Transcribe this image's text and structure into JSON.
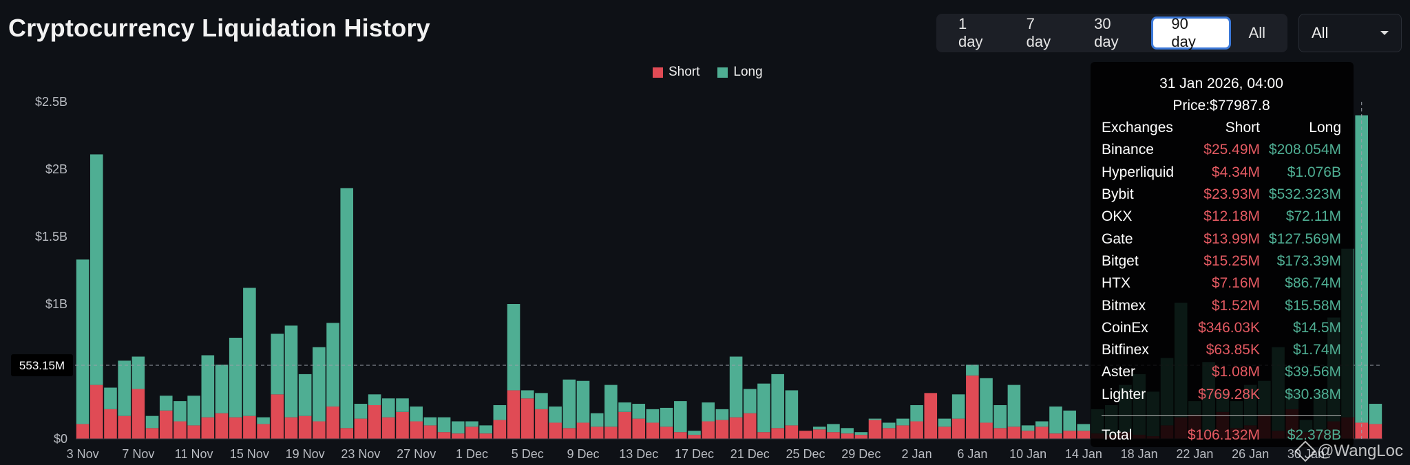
{
  "title": "Cryptocurrency Liquidation History",
  "ranges": [
    "1 day",
    "7 day",
    "30 day",
    "90 day",
    "All"
  ],
  "active_range": "90 day",
  "select_value": "All",
  "colors": {
    "short": "#e04b55",
    "long": "#4fae93",
    "bg": "#0e1116"
  },
  "crosshair_value": "553.15M",
  "tooltip": {
    "time": "31 Jan 2026, 04:00",
    "price": "Price:$77987.8",
    "headers": [
      "Exchanges",
      "Short",
      "Long"
    ],
    "rows": [
      [
        "Binance",
        "$25.49M",
        "$208.054M"
      ],
      [
        "Hyperliquid",
        "$4.34M",
        "$1.076B"
      ],
      [
        "Bybit",
        "$23.93M",
        "$532.323M"
      ],
      [
        "OKX",
        "$12.18M",
        "$72.11M"
      ],
      [
        "Gate",
        "$13.99M",
        "$127.569M"
      ],
      [
        "Bitget",
        "$15.25M",
        "$173.39M"
      ],
      [
        "HTX",
        "$7.16M",
        "$86.74M"
      ],
      [
        "Bitmex",
        "$1.52M",
        "$15.58M"
      ],
      [
        "CoinEx",
        "$346.03K",
        "$14.5M"
      ],
      [
        "Bitfinex",
        "$63.85K",
        "$1.74M"
      ],
      [
        "Aster",
        "$1.08M",
        "$39.56M"
      ],
      [
        "Lighter",
        "$769.28K",
        "$30.38M"
      ]
    ],
    "total": [
      "Total",
      "$106.132M",
      "$2.378B"
    ]
  },
  "watermark": "@WangLoc",
  "chart_data": {
    "type": "bar",
    "stacked": true,
    "unit": "USD billions",
    "ylim": [
      0,
      2.5
    ],
    "yticks": [
      {
        "v": 0,
        "label": "$0"
      },
      {
        "v": 0.5,
        "label": "$500M"
      },
      {
        "v": 1,
        "label": "$1B"
      },
      {
        "v": 1.5,
        "label": "$1.5B"
      },
      {
        "v": 2,
        "label": "$2B"
      },
      {
        "v": 2.5,
        "label": "$2.5B"
      }
    ],
    "xtick_labels": [
      "3 Nov",
      "7 Nov",
      "11 Nov",
      "15 Nov",
      "19 Nov",
      "23 Nov",
      "27 Nov",
      "1 Dec",
      "5 Dec",
      "9 Dec",
      "13 Dec",
      "17 Dec",
      "21 Dec",
      "25 Dec",
      "29 Dec",
      "2 Jan",
      "6 Jan",
      "10 Jan",
      "14 Jan",
      "18 Jan",
      "22 Jan",
      "26 Jan",
      "30 Jan"
    ],
    "xtick_every": 4,
    "legend": [
      "Short",
      "Long"
    ],
    "legend_position": "top",
    "series": [
      {
        "name": "Short",
        "values": [
          0.11,
          0.4,
          0.22,
          0.17,
          0.37,
          0.08,
          0.21,
          0.13,
          0.1,
          0.16,
          0.19,
          0.16,
          0.17,
          0.11,
          0.33,
          0.16,
          0.17,
          0.13,
          0.24,
          0.08,
          0.15,
          0.25,
          0.16,
          0.2,
          0.13,
          0.1,
          0.05,
          0.04,
          0.09,
          0.04,
          0.14,
          0.36,
          0.3,
          0.22,
          0.12,
          0.08,
          0.12,
          0.09,
          0.09,
          0.2,
          0.15,
          0.12,
          0.09,
          0.05,
          0.03,
          0.13,
          0.14,
          0.16,
          0.19,
          0.05,
          0.08,
          0.1,
          0.06,
          0.07,
          0.05,
          0.04,
          0.03,
          0.14,
          0.08,
          0.1,
          0.13,
          0.34,
          0.09,
          0.15,
          0.47,
          0.12,
          0.08,
          0.09,
          0.06,
          0.09,
          0.04,
          0.06,
          0.06,
          0.04,
          0.03,
          0.05,
          0.03,
          0.02,
          0.1,
          0.16,
          0.18,
          0.05,
          0.2,
          0.08,
          0.1,
          0.18,
          0.06,
          0.22,
          0.05,
          0.07,
          0.13,
          0.16,
          0.12,
          0.11
        ]
      },
      {
        "name": "Long",
        "values": [
          1.22,
          1.71,
          0.16,
          0.41,
          0.24,
          0.09,
          0.11,
          0.15,
          0.22,
          0.46,
          0.36,
          0.59,
          0.95,
          0.05,
          0.45,
          0.68,
          0.31,
          0.55,
          0.62,
          1.78,
          0.11,
          0.08,
          0.14,
          0.1,
          0.11,
          0.06,
          0.11,
          0.09,
          0.04,
          0.06,
          0.11,
          0.64,
          0.06,
          0.12,
          0.12,
          0.36,
          0.31,
          0.1,
          0.31,
          0.07,
          0.11,
          0.1,
          0.14,
          0.23,
          0.03,
          0.14,
          0.08,
          0.45,
          0.18,
          0.36,
          0.4,
          0.26,
          0.0,
          0.02,
          0.06,
          0.04,
          0.02,
          0.01,
          0.04,
          0.05,
          0.12,
          0.0,
          0.06,
          0.18,
          0.08,
          0.33,
          0.17,
          0.31,
          0.04,
          0.04,
          0.2,
          0.15,
          0.05,
          0.18,
          0.22,
          0.35,
          0.45,
          0.33,
          0.5,
          0.85,
          0.1,
          0.52,
          0.15,
          0.2,
          0.3,
          0.25,
          0.62,
          0.14,
          0.09,
          0.28,
          0.77,
          1.25,
          2.28,
          0.15
        ]
      }
    ]
  }
}
